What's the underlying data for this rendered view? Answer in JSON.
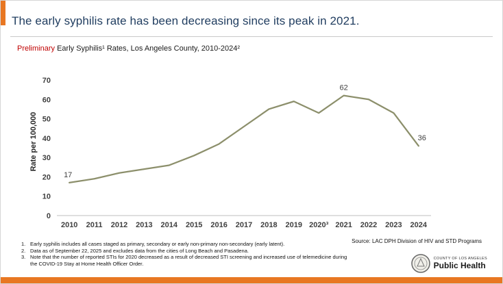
{
  "slide": {
    "title": "The early syphilis rate has been decreasing since its peak in 2021.",
    "subtitle_prefix": "Preliminary",
    "subtitle_rest": " Early Syphilis¹ Rates, Los Angeles County, 2010-2024²"
  },
  "chart_data": {
    "type": "line",
    "title": "Preliminary Early Syphilis Rates, Los Angeles County, 2010-2024",
    "categories": [
      "2010",
      "2011",
      "2012",
      "2013",
      "2014",
      "2015",
      "2016",
      "2017",
      "2018",
      "2019",
      "2020³",
      "2021",
      "2022",
      "2023",
      "2024"
    ],
    "values": [
      17,
      19,
      22,
      24,
      26,
      31,
      37,
      46,
      55,
      59,
      53,
      62,
      60,
      53,
      36
    ],
    "xlabel": "",
    "ylabel": "Rate per 100,000",
    "ylim": [
      0,
      70
    ],
    "ytick_step": 10,
    "grid": false,
    "legend": "none",
    "line_color": "#8C8F6B",
    "annotations": [
      {
        "category": "2010",
        "text": "17",
        "dx": -2,
        "dy": 0
      },
      {
        "category": "2021",
        "text": "62",
        "dx": 0,
        "dy": 0
      },
      {
        "category": "2024",
        "text": "36",
        "dx": 5,
        "dy": 0
      }
    ]
  },
  "footnotes": [
    {
      "num": "1.",
      "text": "Early syphilis includes all cases staged as primary, secondary or early non-primary non-secondary (early latent)."
    },
    {
      "num": "2.",
      "text": "Data as of September 22, 2025 and excludes data from the cities of Long Beach and Pasadena."
    },
    {
      "num": "3.",
      "text": "Note that the number of reported STIs for 2020 decreased as a result of decreased STI screening and increased use of telemedicine during the COVID-19 Stay at Home Health Officer Order."
    }
  ],
  "source": "Source: LAC DPH Division of HIV and STD Programs",
  "logo": {
    "org": "COUNTY OF LOS ANGELES",
    "dept": "Public Health"
  },
  "colors": {
    "accent_orange": "#E87722",
    "title_blue": "#1F3C5F",
    "preliminary_red": "#C00000",
    "line_olive": "#8C8F6B"
  }
}
